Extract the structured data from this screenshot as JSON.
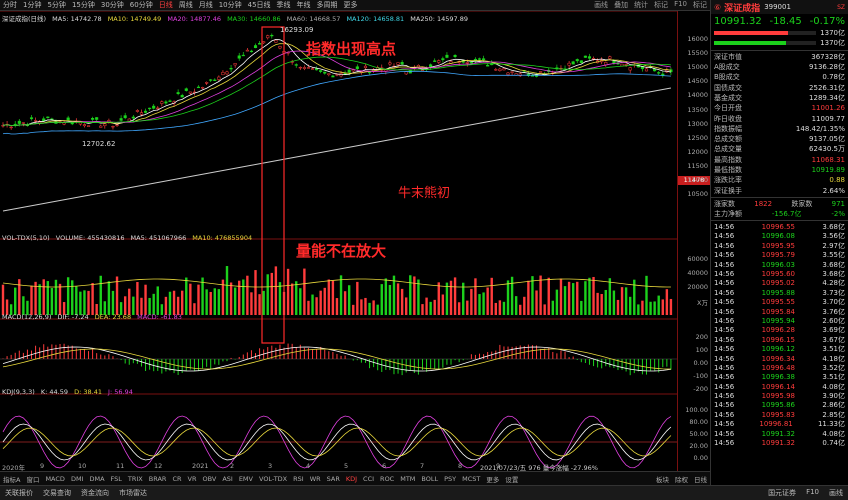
{
  "topbar": {
    "periods": [
      "分时",
      "1分钟",
      "5分钟",
      "15分钟",
      "30分钟",
      "60分钟",
      "日线",
      "周线",
      "月线",
      "10分钟",
      "45日线",
      "季线",
      "年线",
      "多周期",
      "更多"
    ],
    "active_index": 6,
    "right": [
      "画线",
      "叠加",
      "统计",
      "标记",
      "F10",
      "标记"
    ]
  },
  "main": {
    "legend": {
      "title": "深证成指(日线)",
      "ma5": "MA5: 14742.78",
      "ma10": "MA10: 14749.49",
      "ma20": "MA20: 14877.46",
      "ma30": "MA30: 14660.86",
      "ma60": "MA60: 14668.57",
      "ma120": "MA120: 14658.81",
      "ma250": "MA250: 14597.89"
    },
    "high_label": "16293.09",
    "low_label": "12702.62",
    "ann_high": "指数出现高点",
    "ann_bear": "牛末熊初",
    "ann_vol": "量能不在放大",
    "price_ticks": [
      "16000",
      "15500",
      "15000",
      "14500",
      "14000",
      "13500",
      "13000",
      "12500",
      "12000",
      "11500",
      "11000",
      "10500"
    ],
    "current_price_tag": "11478"
  },
  "vol": {
    "legend": {
      "name": "VOL-TDX(5,10)",
      "volume": "VOLUME: 455430816",
      "ma5": "MA5: 451067966",
      "ma10": "MA10: 476855904"
    },
    "ticks": [
      "60000",
      "40000",
      "20000",
      "X万"
    ]
  },
  "macd": {
    "legend": {
      "name": "MACD(12,26,9)",
      "dif": "DIF: -7.24",
      "dea": "DEA: 23.68",
      "macd": "MACD: -61.83"
    },
    "ticks": [
      "200",
      "100",
      "0.00",
      "-100",
      "-200"
    ]
  },
  "kdj": {
    "legend": {
      "name": "KDJ(9,3,3)",
      "k": "K: 44.59",
      "d": "D: 38.41",
      "j": "J: 56.94"
    },
    "ticks": [
      "100.00",
      "80.00",
      "50.00",
      "20.00",
      "0.00"
    ]
  },
  "datebar": {
    "labels": [
      "2020年",
      "9",
      "10",
      "11",
      "12",
      "2021",
      "2",
      "3",
      "4",
      "5",
      "6",
      "7",
      "8",
      "9"
    ],
    "info": "2021/07/23/五 976 量今涨幅 -27.96%"
  },
  "bottombar": {
    "tabs": [
      "指标A",
      "窗口",
      "MACD",
      "DMI",
      "DMA",
      "FSL",
      "TRIX",
      "BRAR",
      "CR",
      "VR",
      "OBV",
      "ASI",
      "EMV",
      "VOL-TDX",
      "RSI",
      "WR",
      "SAR",
      "KDJ",
      "CCI",
      "ROC",
      "MTM",
      "BOLL",
      "PSY",
      "MCST",
      "更多",
      "设置"
    ],
    "active_index": 17,
    "right": [
      "板块",
      "除权",
      "日线"
    ]
  },
  "footbar": {
    "items": [
      "关联报价",
      "交易查询",
      "资金流向",
      "市场雷达"
    ],
    "right": [
      "国元证券",
      "F10",
      "画线"
    ]
  },
  "side": {
    "header": {
      "name": "深证成指",
      "code": "399001",
      "badge": "SZ"
    },
    "quote": {
      "price": "10991.32",
      "change": "-18.45",
      "pct": "-0.17%"
    },
    "bars": [
      {
        "label": "",
        "value": "1370亿",
        "pct": 72
      },
      {
        "label": "",
        "value": "1370亿",
        "pct": 70
      }
    ],
    "stats": [
      {
        "k": "深证市值",
        "v": "367328亿",
        "c": "white"
      },
      {
        "k": "A股成交",
        "v": "9136.28亿",
        "c": "white"
      },
      {
        "k": "B股成交",
        "v": "0.78亿",
        "c": "white"
      },
      {
        "k": "国债成交",
        "v": "2526.31亿",
        "c": "white"
      },
      {
        "k": "基金成交",
        "v": "1289.34亿",
        "c": "white"
      },
      {
        "k": "今日开盘",
        "v": "11001.26",
        "c": "red"
      },
      {
        "k": "昨日收盘",
        "v": "11009.77",
        "c": "white"
      },
      {
        "k": "指数振幅",
        "v": "148.42/1.35%",
        "c": "white"
      },
      {
        "k": "总成交额",
        "v": "9137.05亿",
        "c": "white"
      },
      {
        "k": "总成交量",
        "v": "62430.5万",
        "c": "white"
      },
      {
        "k": "最高指数",
        "v": "11068.31",
        "c": "red"
      },
      {
        "k": "最低指数",
        "v": "10919.89",
        "c": "green"
      },
      {
        "k": "涨跌比率",
        "v": "0.88",
        "c": "yellow"
      },
      {
        "k": "深证换手",
        "v": "2.64%",
        "c": "white"
      }
    ],
    "updown": {
      "up_label": "涨家数",
      "up": "1822",
      "down_label": "跌家数",
      "down": "971"
    },
    "netflow": {
      "label": "主力净额",
      "value": "-156.7亿",
      "pct": "-2%"
    },
    "trades": [
      {
        "t": "14:56",
        "p": "10996.55",
        "v": "3.68亿"
      },
      {
        "t": "14:56",
        "p": "10996.08",
        "v": "3.56亿"
      },
      {
        "t": "14:56",
        "p": "10995.95",
        "v": "2.97亿"
      },
      {
        "t": "14:56",
        "p": "10995.79",
        "v": "3.55亿"
      },
      {
        "t": "14:56",
        "p": "10996.03",
        "v": "3.68亿"
      },
      {
        "t": "14:56",
        "p": "10995.60",
        "v": "3.68亿"
      },
      {
        "t": "14:56",
        "p": "10995.02",
        "v": "4.28亿"
      },
      {
        "t": "14:56",
        "p": "10995.88",
        "v": "3.73亿"
      },
      {
        "t": "14:56",
        "p": "10995.55",
        "v": "3.70亿"
      },
      {
        "t": "14:56",
        "p": "10995.84",
        "v": "3.76亿"
      },
      {
        "t": "14:56",
        "p": "10995.94",
        "v": "2.60亿"
      },
      {
        "t": "14:56",
        "p": "10996.28",
        "v": "3.69亿"
      },
      {
        "t": "14:56",
        "p": "10996.15",
        "v": "3.67亿"
      },
      {
        "t": "14:56",
        "p": "10996.12",
        "v": "3.51亿"
      },
      {
        "t": "14:56",
        "p": "10996.34",
        "v": "4.18亿"
      },
      {
        "t": "14:56",
        "p": "10996.48",
        "v": "3.52亿"
      },
      {
        "t": "14:56",
        "p": "10996.38",
        "v": "3.51亿"
      },
      {
        "t": "14:56",
        "p": "10996.14",
        "v": "4.08亿"
      },
      {
        "t": "14:56",
        "p": "10995.98",
        "v": "3.90亿"
      },
      {
        "t": "14:56",
        "p": "10995.86",
        "v": "2.86亿"
      },
      {
        "t": "14:56",
        "p": "10995.83",
        "v": "2.85亿"
      },
      {
        "t": "14:56",
        "p": "10996.81",
        "v": "11.33亿"
      },
      {
        "t": "14:56",
        "p": "10991.32",
        "v": "4.08亿"
      },
      {
        "t": "14:56",
        "p": "10991.32",
        "v": "0.74亿"
      }
    ]
  },
  "colors": {
    "up": "#ff3c3c",
    "down": "#1cd11c",
    "ma5": "#ffffff",
    "ma10": "#e8d83c",
    "ma20": "#e040e0",
    "ma30": "#1cd11c",
    "ma60": "#888888",
    "ma120": "#40a8ff",
    "ma250": "#cccccc",
    "annotation": "#ff2a2a"
  }
}
